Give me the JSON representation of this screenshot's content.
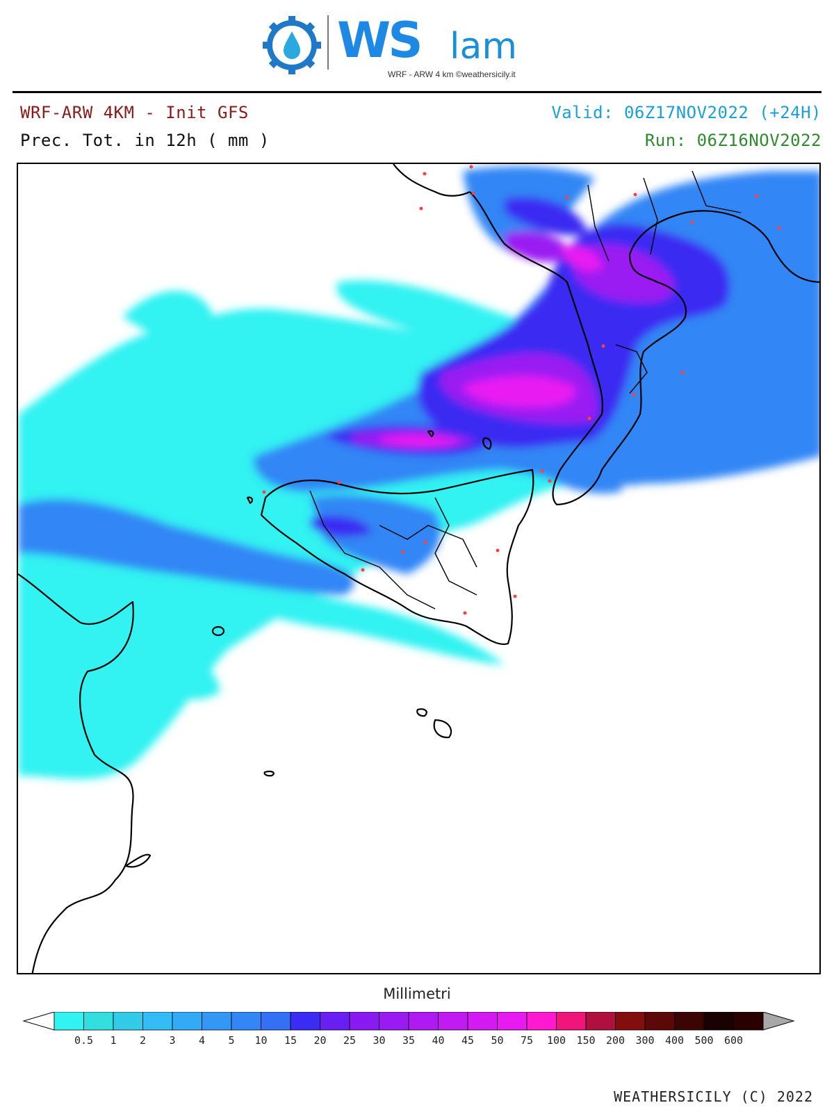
{
  "logo": {
    "brand": "WS",
    "brand_suffix": "lam",
    "subtitle": "WRF - ARW 4 km ©weathersicily.it",
    "icon": "gear-droplet-icon"
  },
  "header": {
    "model_title": "WRF-ARW 4KM - Init GFS",
    "field_title": "Prec. Tot. in 12h ( mm )",
    "valid": "Valid: 06Z17NOV2022 (+24H)",
    "run": "Run: 06Z16NOV2022"
  },
  "colorbar": {
    "title": "Millimetri",
    "levels": [
      "0.5",
      "1",
      "2",
      "3",
      "4",
      "5",
      "10",
      "15",
      "20",
      "25",
      "30",
      "35",
      "40",
      "45",
      "50",
      "75",
      "100",
      "150",
      "200",
      "300",
      "400",
      "500",
      "600"
    ],
    "colors": [
      "#33f2f2",
      "#33dede",
      "#33cce8",
      "#33bcf5",
      "#33aaf5",
      "#3398f5",
      "#3386f5",
      "#3370f5",
      "#3a2cf2",
      "#6a1ff2",
      "#8a1af2",
      "#9a1af2",
      "#b01af2",
      "#c21af2",
      "#d41af2",
      "#e81af2",
      "#ff19d1",
      "#f0157a",
      "#b01040",
      "#820e0e",
      "#5c0808",
      "#3c0505",
      "#1a0202",
      "#2a0000"
    ],
    "under_color": "#ffffff",
    "over_color": "#a8a8a8"
  },
  "credit": "WEATHERSICILY (C) 2022",
  "map": {
    "region": "Southern Italy, Sicily and Tunisian coast",
    "precip_scale": [
      "#33f2f2",
      "#3386f5",
      "#3a2cf2",
      "#9a1af2",
      "#e81af2"
    ],
    "coast_color": "#000000"
  }
}
